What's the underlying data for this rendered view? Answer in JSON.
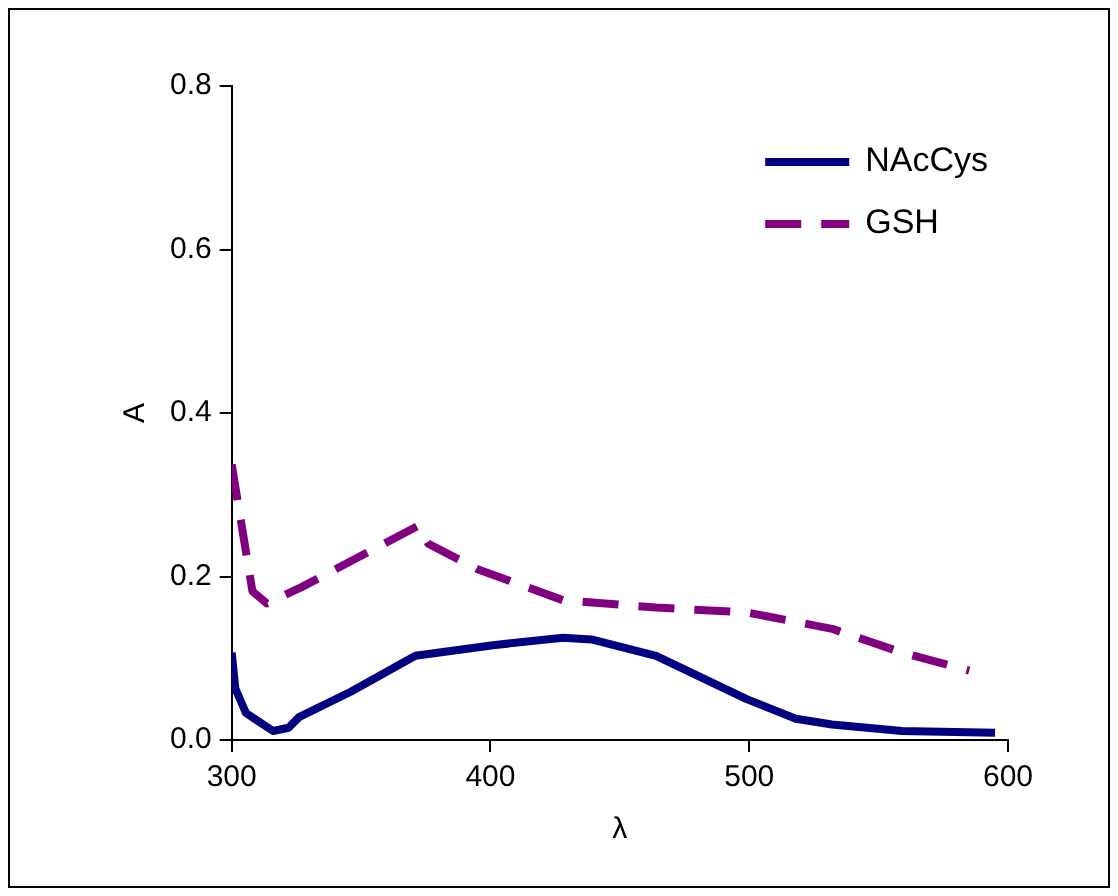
{
  "chart_data": {
    "type": "line",
    "xlabel": "λ",
    "ylabel": "A",
    "xlim": [
      300,
      600
    ],
    "xticks": [
      300,
      400,
      500,
      600
    ],
    "ylim": [
      0,
      0.8
    ],
    "yticks": [
      {
        "value": 0,
        "label": "0.0"
      },
      0.2,
      0.4,
      0.6,
      0.8
    ],
    "grid": false,
    "legend": "top right",
    "marker": "none",
    "series": [
      {
        "name": "NAcCys",
        "color": "#000080",
        "line_style": "solid",
        "x": [
          300,
          301.4,
          305.5,
          316,
          322,
          326,
          346,
          371,
          401,
          428,
          439,
          464,
          499,
          518,
          532,
          559,
          595
        ],
        "values": [
          0.107,
          0.063,
          0.033,
          0.011,
          0.015,
          0.028,
          0.059,
          0.103,
          0.116,
          0.125,
          0.123,
          0.103,
          0.05,
          0.026,
          0.019,
          0.011,
          0.009
        ]
      },
      {
        "name": "GSH",
        "color": "#800080",
        "line_style": "dashed",
        "x": [
          300,
          308,
          313.6,
          327,
          372,
          376,
          395,
          428,
          464,
          499,
          532,
          559,
          585
        ],
        "values": [
          0.337,
          0.182,
          0.167,
          0.187,
          0.262,
          0.24,
          0.209,
          0.171,
          0.162,
          0.156,
          0.136,
          0.107,
          0.085
        ]
      }
    ]
  }
}
